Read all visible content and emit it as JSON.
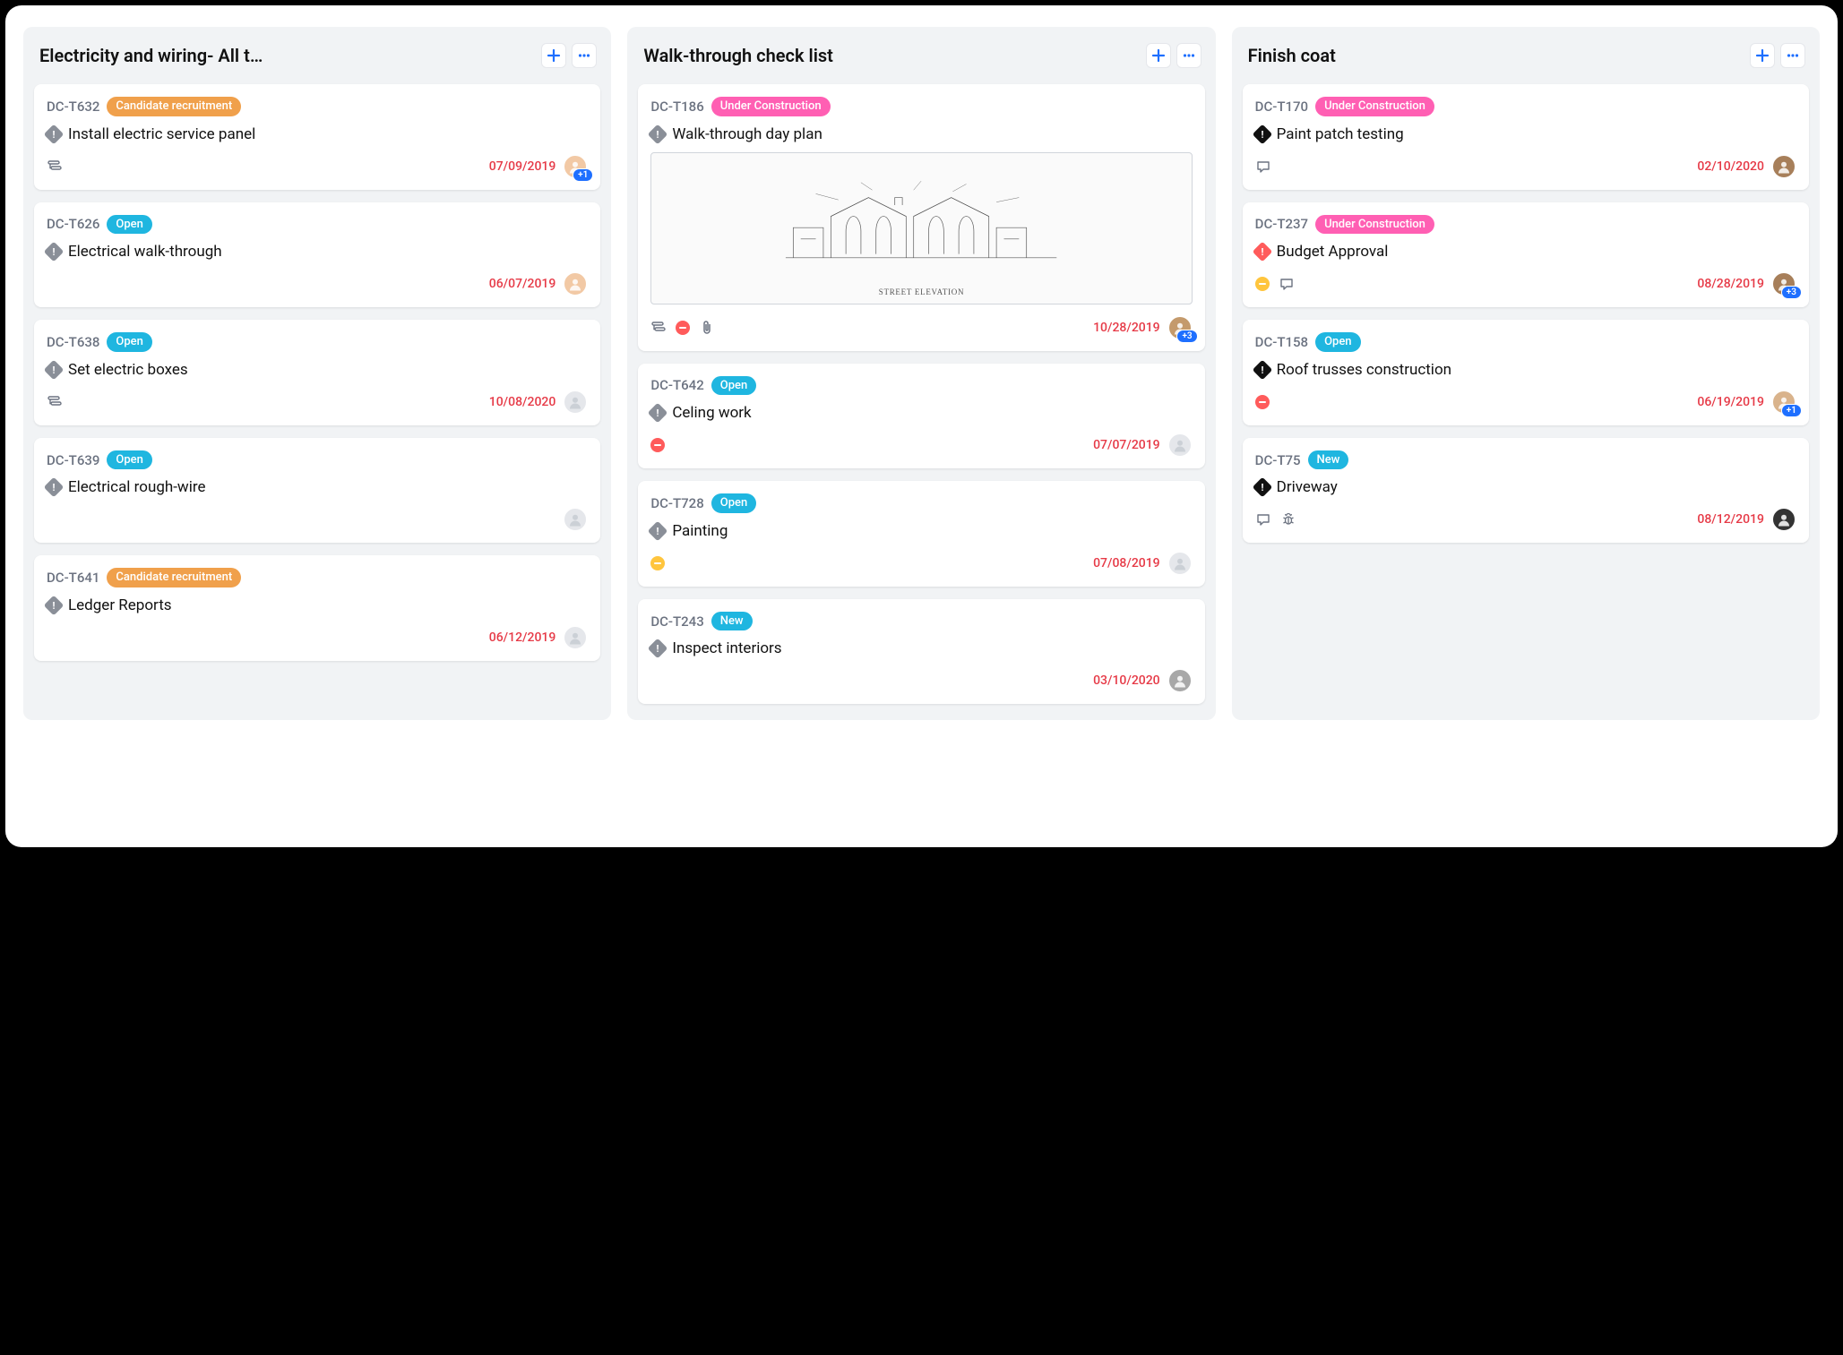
{
  "colors": {
    "tag_orange": "#f0a04b",
    "tag_blue": "#1fb6e0",
    "tag_pink": "#ff5fb3",
    "date_red": "#e63946",
    "plus_blue": "#1e6fff",
    "priority_gray": "#8a8f98",
    "priority_black": "#111111",
    "priority_red": "#ff5b5b",
    "dot_red": "#ff5b5b",
    "dot_yellow": "#ffc53d",
    "avatar_placeholder": "#e5e7eb",
    "avatar_a": "#f2c9a5",
    "avatar_b": "#c49a6c",
    "avatar_c": "#a8a8a8",
    "avatar_d": "#a77f5a",
    "avatar_e": "#d9b38c",
    "avatar_f": "#333333"
  },
  "columns": [
    {
      "title": "Electricity and wiring- All ta…",
      "cards": [
        {
          "id": "DC-T632",
          "tag": {
            "label": "Candidate recruitment",
            "color": "tag_orange"
          },
          "priority_color": "priority_gray",
          "title": "Install electric service panel",
          "footer_icons": [
            "subtask"
          ],
          "date": "07/09/2019",
          "avatar": "avatar_a",
          "count": "+1"
        },
        {
          "id": "DC-T626",
          "tag": {
            "label": "Open",
            "color": "tag_blue"
          },
          "priority_color": "priority_gray",
          "title": "Electrical walk-through",
          "footer_icons": [],
          "date": "06/07/2019",
          "avatar": "avatar_a",
          "count": null
        },
        {
          "id": "DC-T638",
          "tag": {
            "label": "Open",
            "color": "tag_blue"
          },
          "priority_color": "priority_gray",
          "title": "Set electric boxes",
          "footer_icons": [
            "subtask"
          ],
          "date": "10/08/2020",
          "avatar": "placeholder",
          "count": null
        },
        {
          "id": "DC-T639",
          "tag": {
            "label": "Open",
            "color": "tag_blue"
          },
          "priority_color": "priority_gray",
          "title": "Electrical rough-wire",
          "footer_icons": [],
          "date": null,
          "avatar": "placeholder",
          "count": null
        },
        {
          "id": "DC-T641",
          "tag": {
            "label": "Candidate recruitment",
            "color": "tag_orange"
          },
          "priority_color": "priority_gray",
          "title": "Ledger Reports",
          "footer_icons": [],
          "date": "06/12/2019",
          "avatar": "placeholder",
          "count": null
        }
      ]
    },
    {
      "title": "Walk-through check list",
      "cards": [
        {
          "id": "DC-T186",
          "tag": {
            "label": "Under Construction",
            "color": "tag_pink"
          },
          "priority_color": "priority_gray",
          "title": "Walk-through day plan",
          "has_thumbnail": true,
          "thumb_label": "STREET ELEVATION",
          "footer_icons": [
            "subtask",
            "dot_red",
            "attachment"
          ],
          "date": "10/28/2019",
          "avatar": "avatar_b",
          "count": "+3"
        },
        {
          "id": "DC-T642",
          "tag": {
            "label": "Open",
            "color": "tag_blue"
          },
          "priority_color": "priority_gray",
          "title": "Celing work",
          "footer_icons": [
            "dot_red"
          ],
          "date": "07/07/2019",
          "avatar": "placeholder",
          "count": null
        },
        {
          "id": "DC-T728",
          "tag": {
            "label": "Open",
            "color": "tag_blue"
          },
          "priority_color": "priority_gray",
          "title": "Painting",
          "footer_icons": [
            "dot_yellow"
          ],
          "date": "07/08/2019",
          "avatar": "placeholder",
          "count": null
        },
        {
          "id": "DC-T243",
          "tag": {
            "label": "New",
            "color": "tag_blue"
          },
          "priority_color": "priority_gray",
          "title": "Inspect interiors",
          "footer_icons": [],
          "date": "03/10/2020",
          "avatar": "avatar_c",
          "count": null
        }
      ]
    },
    {
      "title": "Finish coat",
      "cards": [
        {
          "id": "DC-T170",
          "tag": {
            "label": "Under Construction",
            "color": "tag_pink"
          },
          "priority_color": "priority_black",
          "title": "Paint patch testing",
          "footer_icons": [
            "comment"
          ],
          "date": "02/10/2020",
          "avatar": "avatar_d",
          "count": null
        },
        {
          "id": "DC-T237",
          "tag": {
            "label": "Under Construction",
            "color": "tag_pink"
          },
          "priority_color": "priority_red",
          "title": "Budget Approval",
          "footer_icons": [
            "dot_yellow",
            "comment"
          ],
          "date": "08/28/2019",
          "avatar": "avatar_d",
          "count": "+3"
        },
        {
          "id": "DC-T158",
          "tag": {
            "label": "Open",
            "color": "tag_blue"
          },
          "priority_color": "priority_black",
          "title": "Roof trusses construction",
          "footer_icons": [
            "dot_red"
          ],
          "date": "06/19/2019",
          "avatar": "avatar_e",
          "count": "+1"
        },
        {
          "id": "DC-T75",
          "tag": {
            "label": "New",
            "color": "tag_blue"
          },
          "priority_color": "priority_black",
          "title": "Driveway",
          "footer_icons": [
            "comment",
            "bug"
          ],
          "date": "08/12/2019",
          "avatar": "avatar_f",
          "count": null
        }
      ]
    }
  ]
}
